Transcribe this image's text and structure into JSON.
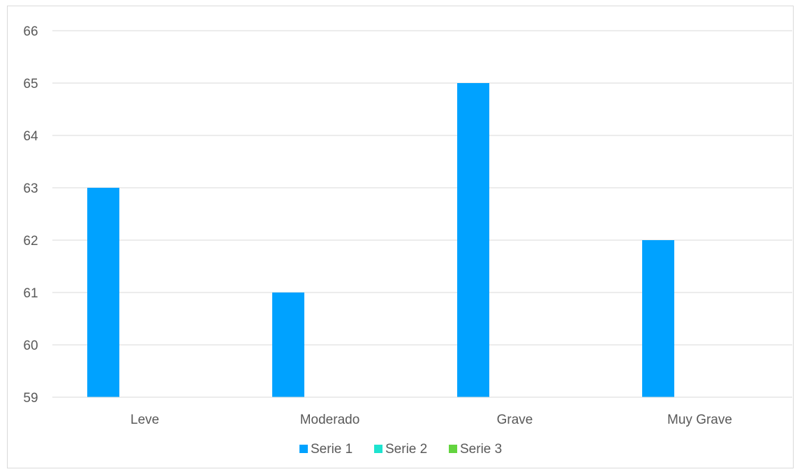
{
  "chart_data": {
    "type": "bar",
    "categories": [
      "Leve",
      "Moderado",
      "Grave",
      "Muy Grave"
    ],
    "series": [
      {
        "name": "Serie 1",
        "color": "#00a2ff",
        "values": [
          63,
          61,
          65,
          62
        ]
      },
      {
        "name": "Serie 2",
        "color": "#1ee3cf",
        "values": [
          null,
          null,
          null,
          null
        ]
      },
      {
        "name": "Serie 3",
        "color": "#63d43f",
        "values": [
          null,
          null,
          null,
          null
        ]
      }
    ],
    "y_ticks": [
      "59",
      "60",
      "61",
      "62",
      "63",
      "64",
      "65",
      "66"
    ],
    "ylim": [
      59,
      66
    ],
    "grid": true,
    "legend_position": "bottom"
  }
}
